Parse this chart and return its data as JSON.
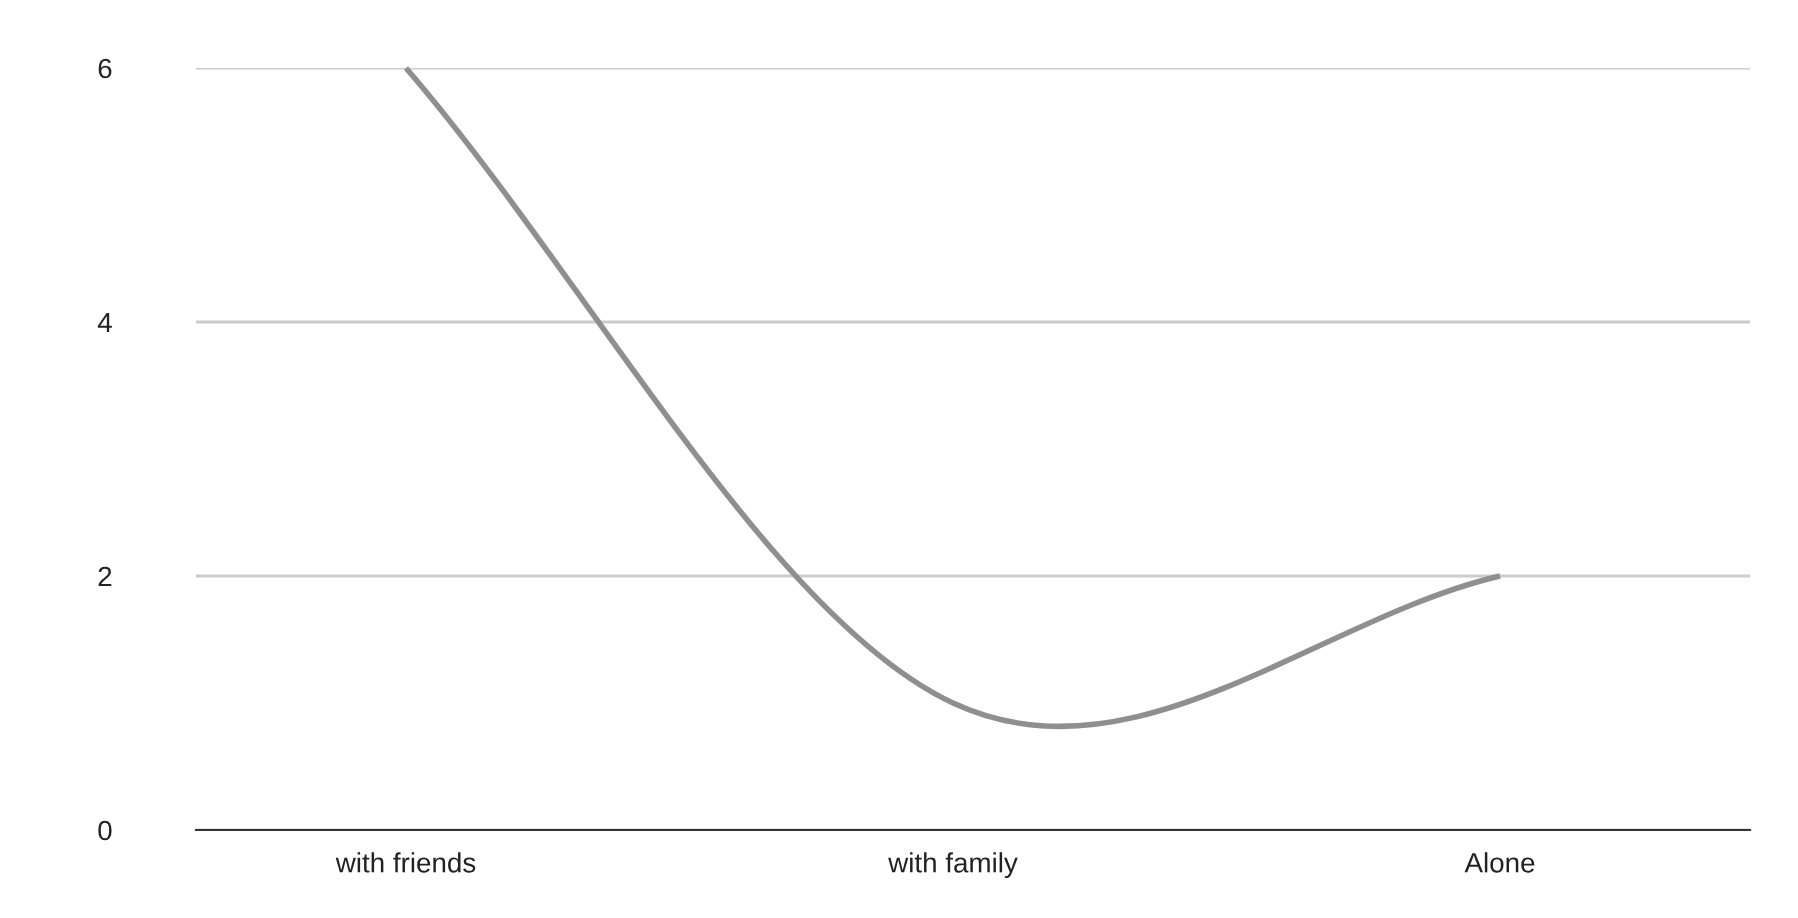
{
  "chart_data": {
    "type": "line",
    "categories": [
      "with friends",
      "with family",
      "Alone"
    ],
    "series": [
      {
        "color": "#8f8f8f",
        "values": [
          6,
          1,
          2
        ]
      }
    ],
    "ylim": [
      0,
      6
    ],
    "yticks": [
      0,
      2,
      4,
      6
    ],
    "grid": "y",
    "marker": "none",
    "line_style": "solid"
  }
}
